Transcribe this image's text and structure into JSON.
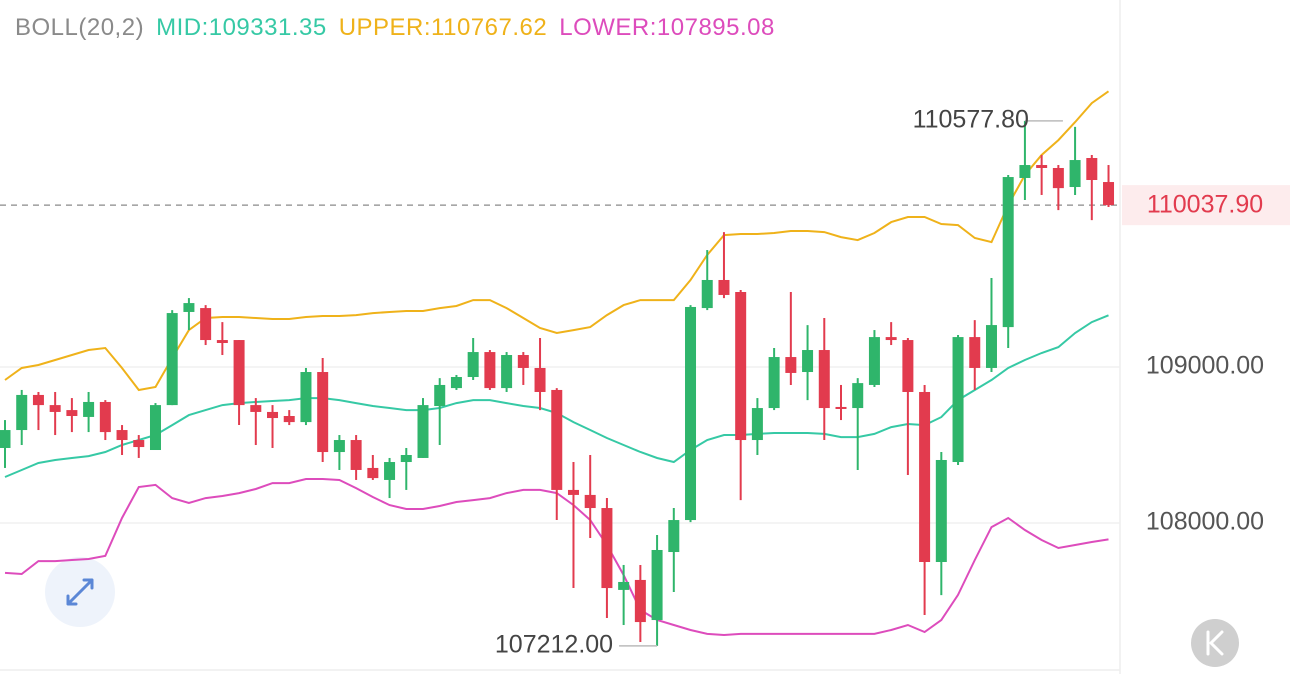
{
  "chart_data": {
    "type": "candlestick",
    "indicator": "BOLL(20,2)",
    "up_color": "#2fb56b",
    "down_color": "#e23b4e",
    "ylim": [
      107032,
      111353
    ],
    "yticks": [
      {
        "value": 109000,
        "label": "109000.00"
      },
      {
        "value": 108000,
        "label": "108000.00"
      }
    ],
    "grid": true,
    "last_price": {
      "value": 110037.9,
      "label": "110037.90"
    },
    "high_marker": {
      "value": 110577.8,
      "label": "110577.80"
    },
    "low_marker": {
      "value": 107212,
      "label": "107212.00"
    },
    "open": [
      108481,
      108596,
      108821,
      108756,
      108724,
      108680,
      108776,
      108596,
      108532,
      108468,
      108756,
      109353,
      109378,
      109173,
      109173,
      108756,
      108712,
      108686,
      108647,
      108968,
      108455,
      108532,
      108353,
      108276,
      108391,
      108417,
      108750,
      108865,
      108936,
      109096,
      108865,
      109077,
      108994,
      108853,
      108212,
      108180,
      108096,
      107571,
      107635,
      107378,
      107814,
      108019,
      109378,
      109558,
      109481,
      108532,
      108737,
      109064,
      108968,
      109109,
      108744,
      108737,
      108885,
      109192,
      109173,
      108840,
      107750,
      108391,
      109192,
      108994,
      109256,
      110212,
      110295,
      110276,
      110154,
      110340,
      110186
    ],
    "high": [
      108660,
      108853,
      108840,
      108840,
      108801,
      108840,
      108788,
      108628,
      108564,
      108769,
      109365,
      109442,
      109397,
      109288,
      109173,
      108801,
      108756,
      108724,
      108994,
      109058,
      108564,
      108564,
      108436,
      108417,
      108481,
      108801,
      108929,
      108949,
      109186,
      109109,
      109096,
      109096,
      109186,
      108865,
      108391,
      108436,
      108160,
      107731,
      107731,
      107923,
      108096,
      109397,
      109750,
      109865,
      109494,
      108801,
      109122,
      109481,
      109269,
      109314,
      108885,
      108929,
      109237,
      109288,
      109186,
      108885,
      108455,
      109205,
      109301,
      109571,
      110231,
      110577.8,
      110359,
      110295,
      110540,
      110359,
      110295
    ],
    "low": [
      108353,
      108500,
      108596,
      108564,
      108583,
      108583,
      108532,
      108436,
      108417,
      108468,
      108756,
      109237,
      109141,
      109077,
      108628,
      108500,
      108481,
      108628,
      108628,
      108391,
      108340,
      108276,
      108276,
      108160,
      108212,
      108417,
      108500,
      108853,
      108917,
      108853,
      108840,
      108885,
      108724,
      108019,
      107583,
      107904,
      107391,
      107346,
      107237,
      107212,
      107558,
      108006,
      109365,
      109442,
      108147,
      108436,
      108724,
      108885,
      108788,
      108532,
      108660,
      108340,
      108872,
      109141,
      108308,
      107410,
      107538,
      108372,
      108853,
      108968,
      109122,
      110071,
      110103,
      110006,
      110103,
      109942,
      110026
    ],
    "close": [
      108596,
      108821,
      108756,
      108712,
      108686,
      108776,
      108583,
      108532,
      108487,
      108756,
      109346,
      109410,
      109173,
      109154,
      108756,
      108712,
      108673,
      108647,
      108968,
      108455,
      108532,
      108340,
      108288,
      108391,
      108436,
      108756,
      108885,
      108936,
      109096,
      108865,
      109077,
      108994,
      108840,
      108212,
      108180,
      108096,
      107583,
      107622,
      107365,
      107827,
      108019,
      109385,
      109558,
      109462,
      108532,
      108737,
      109064,
      108962,
      109109,
      108737,
      108731,
      108897,
      109192,
      109173,
      108840,
      107750,
      108404,
      109192,
      108994,
      109269,
      110218,
      110295,
      110276,
      110147,
      110327,
      110199,
      110037.9
    ],
    "series": [
      {
        "name": "MID:109331.35",
        "color": "#36c9a5",
        "values": [
          108295,
          108340,
          108385,
          108404,
          108417,
          108429,
          108455,
          108500,
          108532,
          108564,
          108628,
          108692,
          108724,
          108756,
          108769,
          108776,
          108782,
          108788,
          108801,
          108801,
          108788,
          108769,
          108750,
          108737,
          108724,
          108724,
          108737,
          108769,
          108788,
          108788,
          108769,
          108750,
          108737,
          108705,
          108647,
          108596,
          108545,
          108500,
          108455,
          108417,
          108391,
          108468,
          108532,
          108564,
          108564,
          108571,
          108577,
          108577,
          108577,
          108571,
          108551,
          108551,
          108571,
          108615,
          108635,
          108628,
          108679,
          108788,
          108853,
          108917,
          108994,
          109045,
          109090,
          109128,
          109218,
          109288,
          109331.35
        ]
      },
      {
        "name": "UPPER:110767.62",
        "color": "#efb21a",
        "values": [
          108917,
          108994,
          109013,
          109045,
          109077,
          109109,
          109122,
          108994,
          108853,
          108872,
          109058,
          109237,
          109314,
          109321,
          109321,
          109314,
          109308,
          109308,
          109321,
          109327,
          109327,
          109333,
          109346,
          109353,
          109359,
          109359,
          109378,
          109391,
          109429,
          109429,
          109378,
          109314,
          109250,
          109218,
          109237,
          109256,
          109333,
          109397,
          109429,
          109429,
          109429,
          109558,
          109718,
          109846,
          109853,
          109853,
          109859,
          109872,
          109872,
          109865,
          109833,
          109814,
          109859,
          109929,
          109962,
          109962,
          109917,
          109910,
          109827,
          109801,
          110038,
          110231,
          110359,
          110455,
          110570,
          110692,
          110767.62
        ]
      },
      {
        "name": "LOWER:107895.08",
        "color": "#dd4cbc",
        "values": [
          107680,
          107673,
          107756,
          107756,
          107763,
          107769,
          107789,
          108032,
          108231,
          108244,
          108160,
          108128,
          108160,
          108173,
          108192,
          108218,
          108256,
          108256,
          108282,
          108282,
          108276,
          108224,
          108167,
          108115,
          108090,
          108090,
          108109,
          108135,
          108147,
          108160,
          108192,
          108212,
          108212,
          108192,
          108115,
          108019,
          107859,
          107667,
          107442,
          107378,
          107346,
          107314,
          107289,
          107282,
          107289,
          107289,
          107289,
          107289,
          107289,
          107289,
          107289,
          107289,
          107289,
          107314,
          107346,
          107301,
          107378,
          107539,
          107763,
          107974,
          108032,
          107955,
          107891,
          107840,
          107859,
          107878,
          107895.08
        ]
      }
    ]
  }
}
